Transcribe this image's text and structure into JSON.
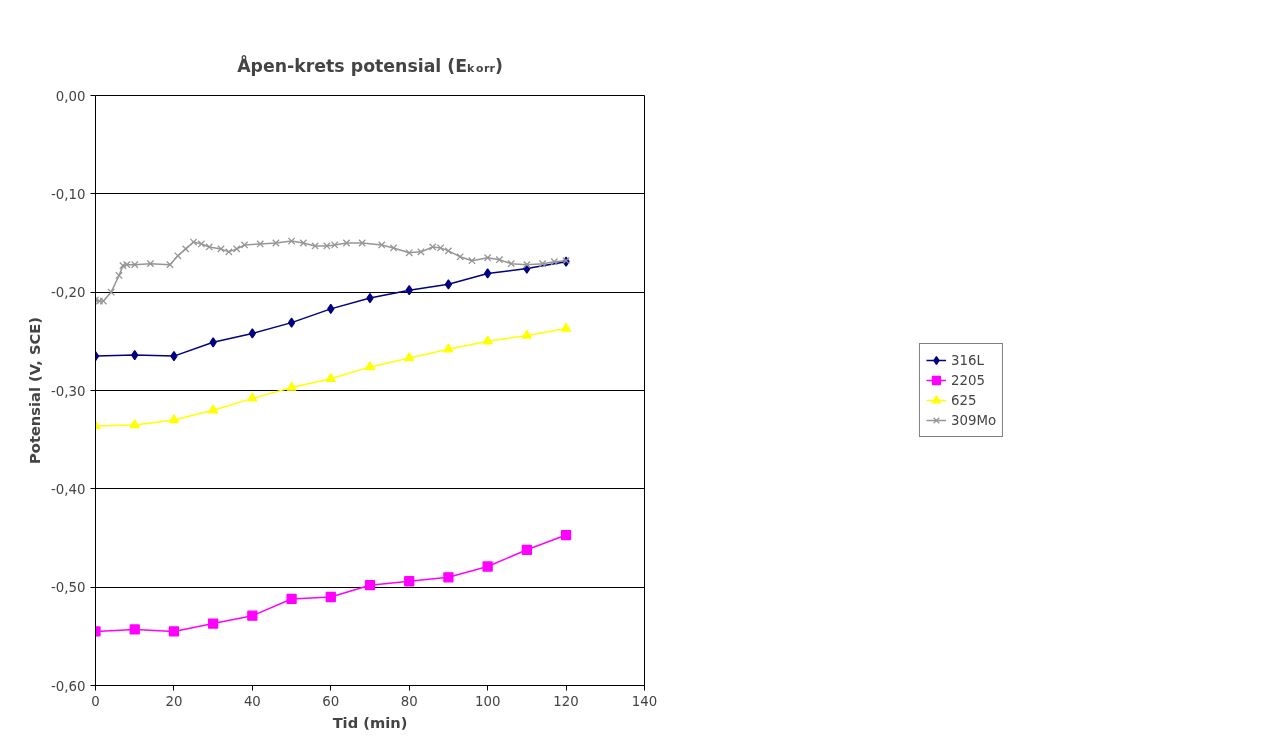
{
  "chart_data": {
    "type": "line",
    "title": "Åpen-krets potensial (Eₖₒᵣᵣ)",
    "xlabel": "Tid (min)",
    "ylabel": "Potensial (V, SCE)",
    "x": [
      0,
      10,
      20,
      30,
      40,
      50,
      60,
      70,
      80,
      90,
      100,
      110,
      120
    ],
    "series": [
      {
        "name": "316L",
        "color": "#000080",
        "marker": "diamond",
        "values": [
          -0.265,
          -0.264,
          -0.265,
          -0.251,
          -0.242,
          -0.231,
          -0.217,
          -0.206,
          -0.198,
          -0.192,
          -0.181,
          -0.176,
          -0.169
        ]
      },
      {
        "name": "2205",
        "color": "#ff00ff",
        "marker": "square",
        "values": [
          -0.545,
          -0.543,
          -0.545,
          -0.537,
          -0.529,
          -0.512,
          -0.51,
          -0.498,
          -0.494,
          -0.49,
          -0.479,
          -0.462,
          -0.447
        ]
      },
      {
        "name": "625",
        "color": "#ffff00",
        "marker": "triangle",
        "values": [
          -0.336,
          -0.335,
          -0.33,
          -0.32,
          -0.308,
          -0.297,
          -0.288,
          -0.276,
          -0.267,
          -0.258,
          -0.25,
          -0.244,
          -0.237
        ]
      },
      {
        "name": "309Mo",
        "color": "#969696",
        "marker": "cross",
        "x": [
          0,
          1,
          2,
          4,
          6,
          7,
          8,
          10,
          14,
          19,
          21,
          23,
          25,
          27,
          29,
          32,
          34,
          36,
          38,
          42,
          46,
          50,
          53,
          56,
          59,
          61,
          64,
          68,
          73,
          76,
          80,
          83,
          86,
          88,
          90,
          93,
          96,
          100,
          103,
          106,
          110,
          114,
          117,
          120
        ],
        "values": [
          -0.208,
          -0.209,
          -0.209,
          -0.2,
          -0.183,
          -0.173,
          -0.172,
          -0.172,
          -0.171,
          -0.172,
          -0.163,
          -0.156,
          -0.149,
          -0.151,
          -0.154,
          -0.156,
          -0.159,
          -0.156,
          -0.152,
          -0.151,
          -0.15,
          -0.148,
          -0.15,
          -0.153,
          -0.153,
          -0.152,
          -0.15,
          -0.15,
          -0.152,
          -0.155,
          -0.16,
          -0.159,
          -0.154,
          -0.155,
          -0.158,
          -0.164,
          -0.168,
          -0.165,
          -0.167,
          -0.171,
          -0.172,
          -0.171,
          -0.169,
          -0.168
        ]
      }
    ],
    "xlim": [
      0,
      140
    ],
    "xticks": [
      0,
      20,
      40,
      60,
      80,
      100,
      120,
      140
    ],
    "ylim": [
      -0.6,
      0
    ],
    "yticks": [
      {
        "value": -0.6,
        "label": "-0,60"
      },
      {
        "value": -0.5,
        "label": "-0,50"
      },
      {
        "value": -0.4,
        "label": "-0,40"
      },
      {
        "value": -0.3,
        "label": "-0,30"
      },
      {
        "value": -0.2,
        "label": "-0,20"
      },
      {
        "value": -0.1,
        "label": "-0,10"
      },
      {
        "value": 0,
        "label": "0,00"
      }
    ],
    "grid": "y",
    "legend": "right",
    "line_style": "solid"
  }
}
